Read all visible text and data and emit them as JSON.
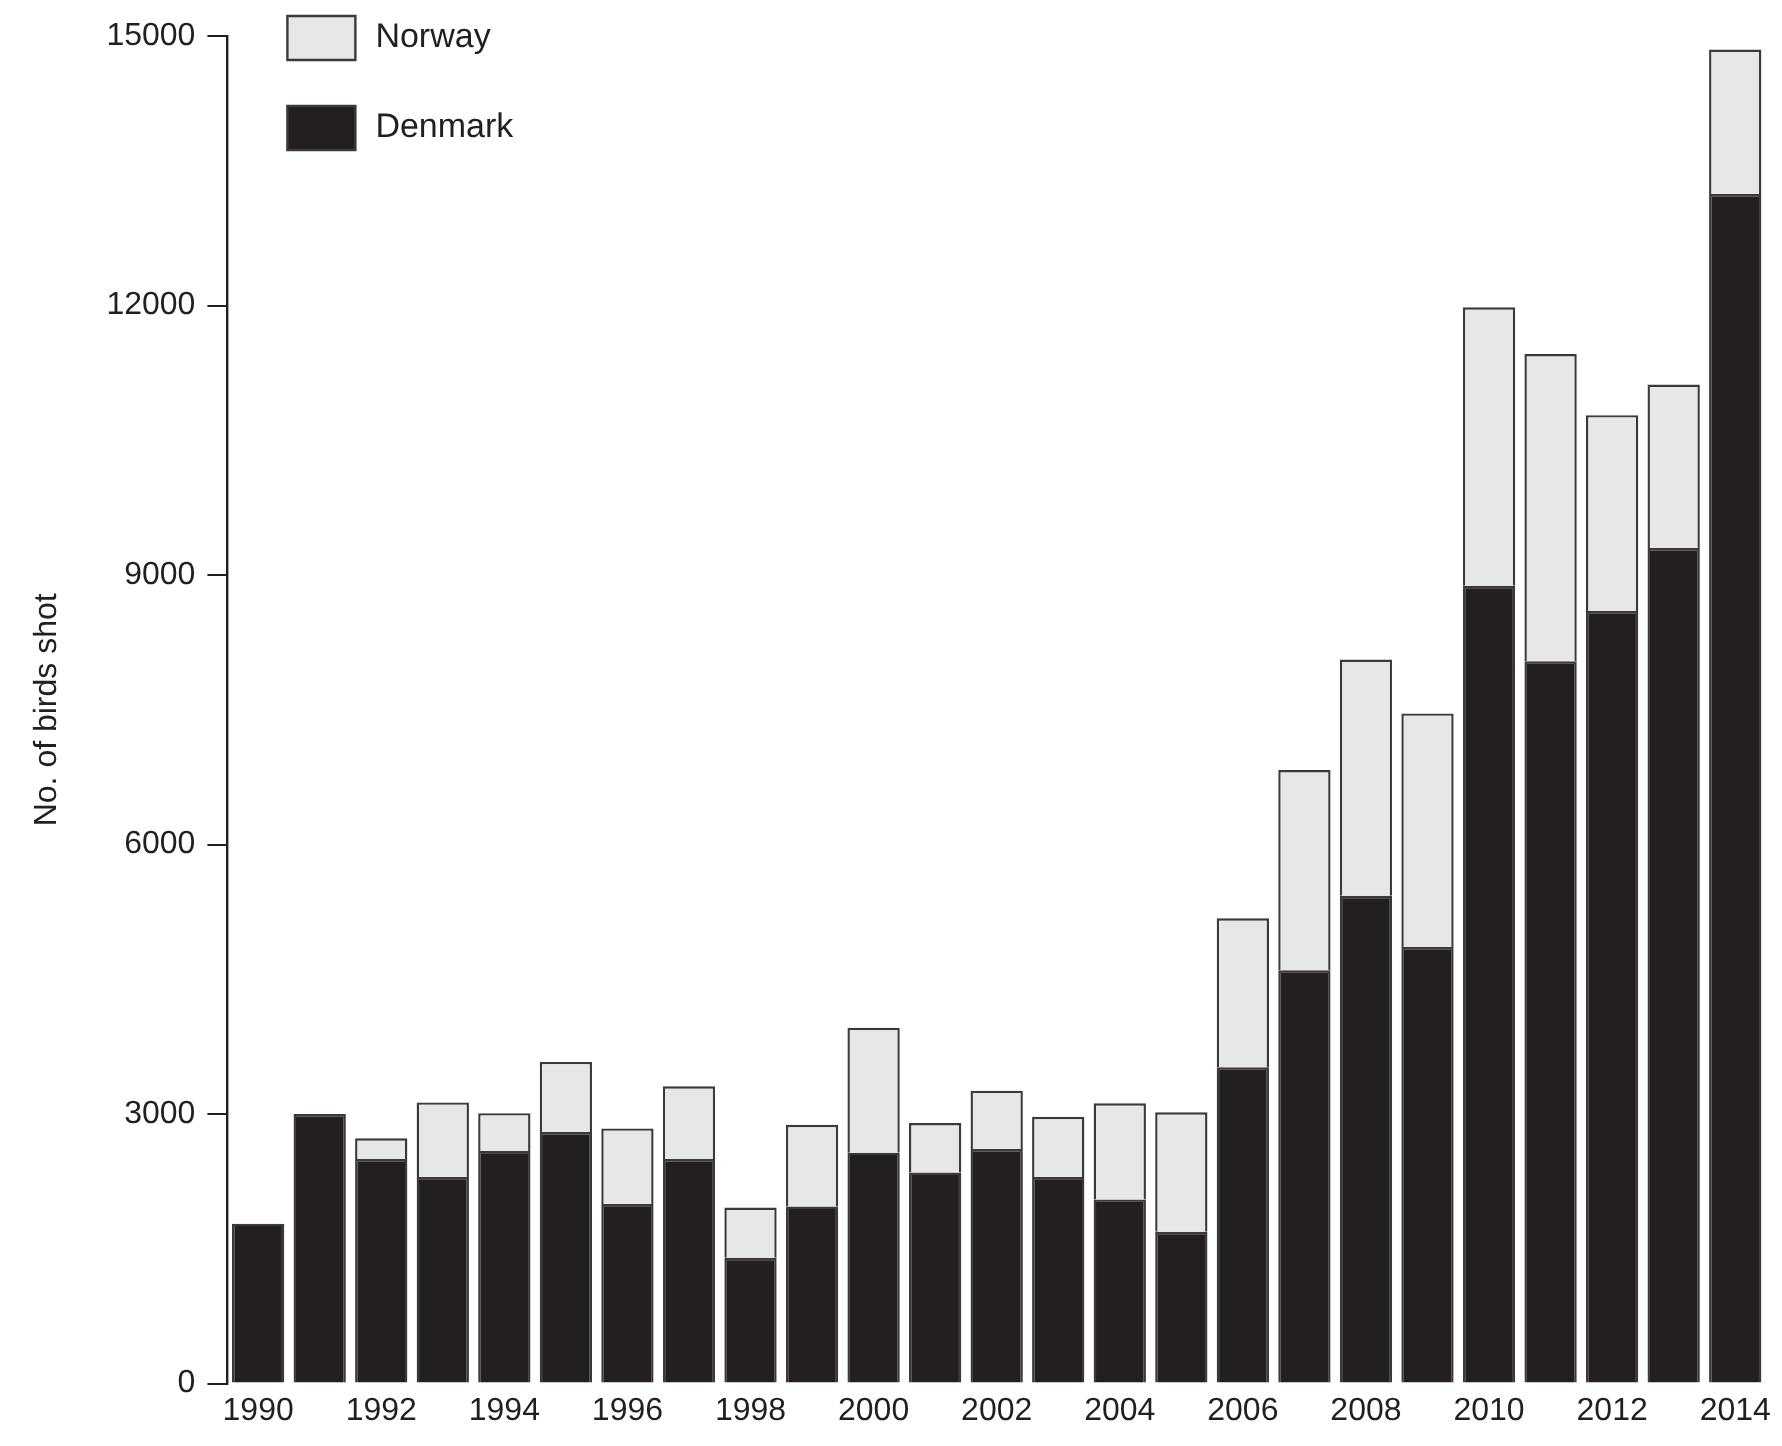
{
  "chart_data": {
    "type": "bar",
    "stacked": true,
    "ylabel": "No. of birds shot",
    "categories": [
      "1990",
      null,
      "1992",
      null,
      "1994",
      null,
      "1996",
      null,
      "1998",
      null,
      "2000",
      null,
      "2002",
      null,
      "2004",
      null,
      "2006",
      null,
      "2008",
      null,
      "2010",
      null,
      "2012",
      null,
      "2014"
    ],
    "series": [
      {
        "name": "Denmark",
        "color": "#231f20",
        "values": [
          1780,
          3000,
          2500,
          2300,
          2590,
          2800,
          2000,
          2500,
          1400,
          1970,
          2570,
          2350,
          2610,
          2300,
          2050,
          1690,
          3520,
          4600,
          5430,
          4860,
          8880,
          8040,
          8600,
          9300,
          13240
        ]
      },
      {
        "name": "Norway",
        "color": "#e6e7e8",
        "values": [
          null,
          null,
          230,
          830,
          420,
          780,
          840,
          810,
          560,
          910,
          1390,
          550,
          650,
          670,
          1070,
          1330,
          1660,
          2230,
          2630,
          2600,
          3100,
          3420,
          2180,
          1820,
          1610
        ]
      }
    ],
    "ylim": [
      0,
      15000
    ],
    "yticks": [
      0,
      3000,
      6000,
      9000,
      12000,
      15000
    ],
    "grid": false,
    "legend": "top left"
  }
}
